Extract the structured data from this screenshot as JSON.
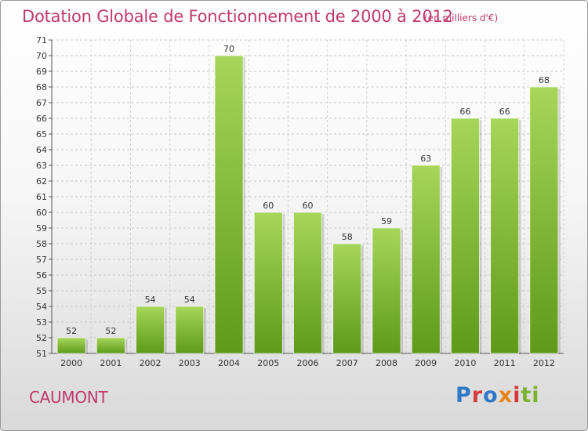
{
  "header": {
    "title": "Dotation Globale de Fonctionnement de 2000 à 2012",
    "subtitle": "(en milliers d'€)"
  },
  "footer": {
    "commune": "CAUMONT",
    "logo_text": "Proxiti"
  },
  "colors": {
    "title": "#c0396b",
    "bar_light": "#a6d65a",
    "bar_dark": "#5f9a1a",
    "logo_blue": "#2e78c7",
    "logo_orange": "#e8861c",
    "logo_green": "#7bb32e",
    "logo_red": "#d53a3a"
  },
  "chart_data": {
    "type": "bar",
    "title": "Dotation Globale de Fonctionnement de 2000 à 2012",
    "subtitle": "(en milliers d'€)",
    "categories": [
      "2000",
      "2001",
      "2002",
      "2003",
      "2004",
      "2005",
      "2006",
      "2007",
      "2008",
      "2009",
      "2010",
      "2011",
      "2012"
    ],
    "values": [
      52,
      52,
      54,
      54,
      70,
      60,
      60,
      58,
      59,
      63,
      66,
      66,
      68
    ],
    "data_labels": [
      "52",
      "52",
      "54",
      "54",
      "70",
      "60",
      "60",
      "58",
      "59",
      "63",
      "66",
      "66",
      "68"
    ],
    "yticks": [
      "51",
      "52",
      "53",
      "54",
      "55",
      "56",
      "57",
      "58",
      "59",
      "60",
      "61",
      "62",
      "63",
      "64",
      "65",
      "66",
      "67",
      "68",
      "69",
      "70",
      "71"
    ],
    "ylim": [
      51,
      71
    ],
    "grid": true
  }
}
